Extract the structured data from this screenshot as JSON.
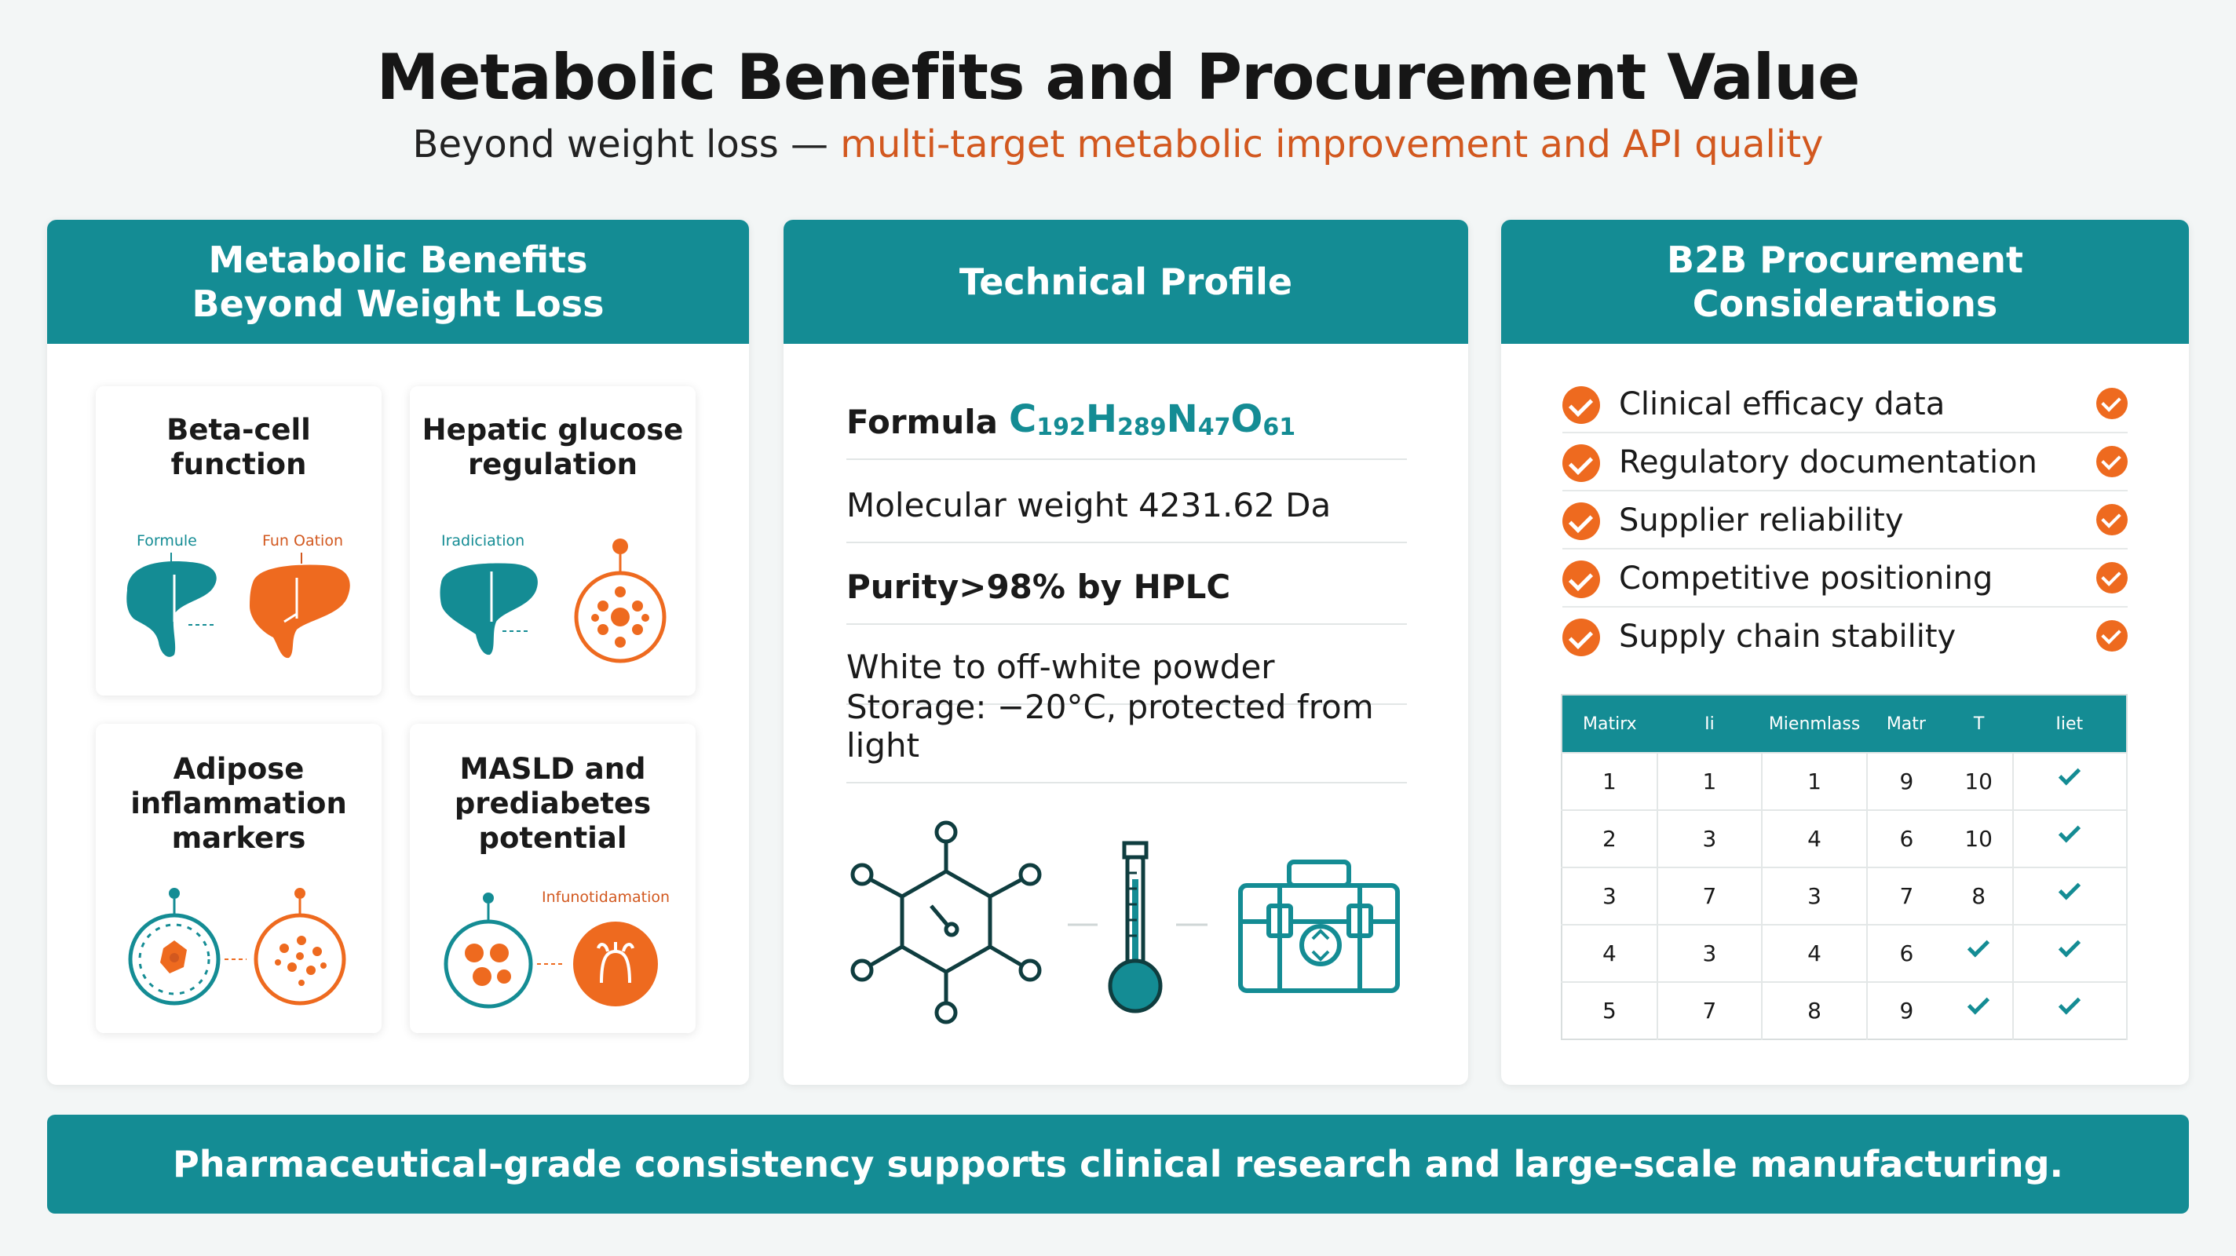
{
  "header": {
    "title": "Metabolic Benefits and Procurement Value",
    "subtitle_prefix": "Beyond weight loss — ",
    "subtitle_accent": "multi-target metabolic improvement and API quality"
  },
  "panel_metabolic": {
    "heading_line1": "Metabolic Benefits",
    "heading_line2": "Beyond Weight Loss",
    "cards": [
      {
        "title_line1": "Beta-cell",
        "title_line2": "function",
        "title_line3": "",
        "labels": [
          "Formule",
          "Fun Oation"
        ]
      },
      {
        "title_line1": "Hepatic glucose",
        "title_line2": "regulation",
        "title_line3": "",
        "labels": [
          "Iradiciation"
        ]
      },
      {
        "title_line1": "Adipose",
        "title_line2": "inflammation",
        "title_line3": "markers",
        "labels": []
      },
      {
        "title_line1": "MASLD and",
        "title_line2": "prediabetes",
        "title_line3": "potential",
        "labels": [
          "Infunotidamation"
        ]
      }
    ]
  },
  "panel_technical": {
    "heading": "Technical Profile",
    "formula_label": "Formula",
    "formula": {
      "c": "C",
      "c_n": "192",
      "h": "H",
      "h_n": "289",
      "n": "N",
      "n_n": "47",
      "o": "O",
      "o_n": "61"
    },
    "molecular_weight": "Molecular weight 4231.62 Da",
    "purity_label": "Purity",
    "purity_value": " >98% by HPLC",
    "appearance": "White to off-white powder",
    "storage": "Storage: −20°C, protected from light"
  },
  "panel_procurement": {
    "heading_line1": "B2B Procurement",
    "heading_line2": "Considerations",
    "checklist": [
      "Clinical efficacy data",
      "Regulatory documentation",
      "Supplier reliability",
      "Competitive positioning",
      "Supply chain stability"
    ],
    "table": {
      "headers": [
        "Matirx",
        "Ii",
        "Mienmlass",
        "Matr",
        "T",
        "Iiet"
      ],
      "rows": [
        [
          "1",
          "1",
          "1",
          "9",
          "10",
          "check"
        ],
        [
          "2",
          "3",
          "4",
          "6",
          "10",
          "check"
        ],
        [
          "3",
          "7",
          "3",
          "7",
          "8",
          "check"
        ],
        [
          "4",
          "3",
          "4",
          "6",
          "check",
          "check"
        ],
        [
          "5",
          "7",
          "8",
          "9",
          "check",
          "check"
        ]
      ]
    }
  },
  "footer": {
    "text": "Pharmaceutical-grade consistency supports clinical research and large-scale manufacturing."
  },
  "colors": {
    "teal": "#148c94",
    "orange": "#ee6a1f",
    "accent_text": "#d2581f"
  }
}
